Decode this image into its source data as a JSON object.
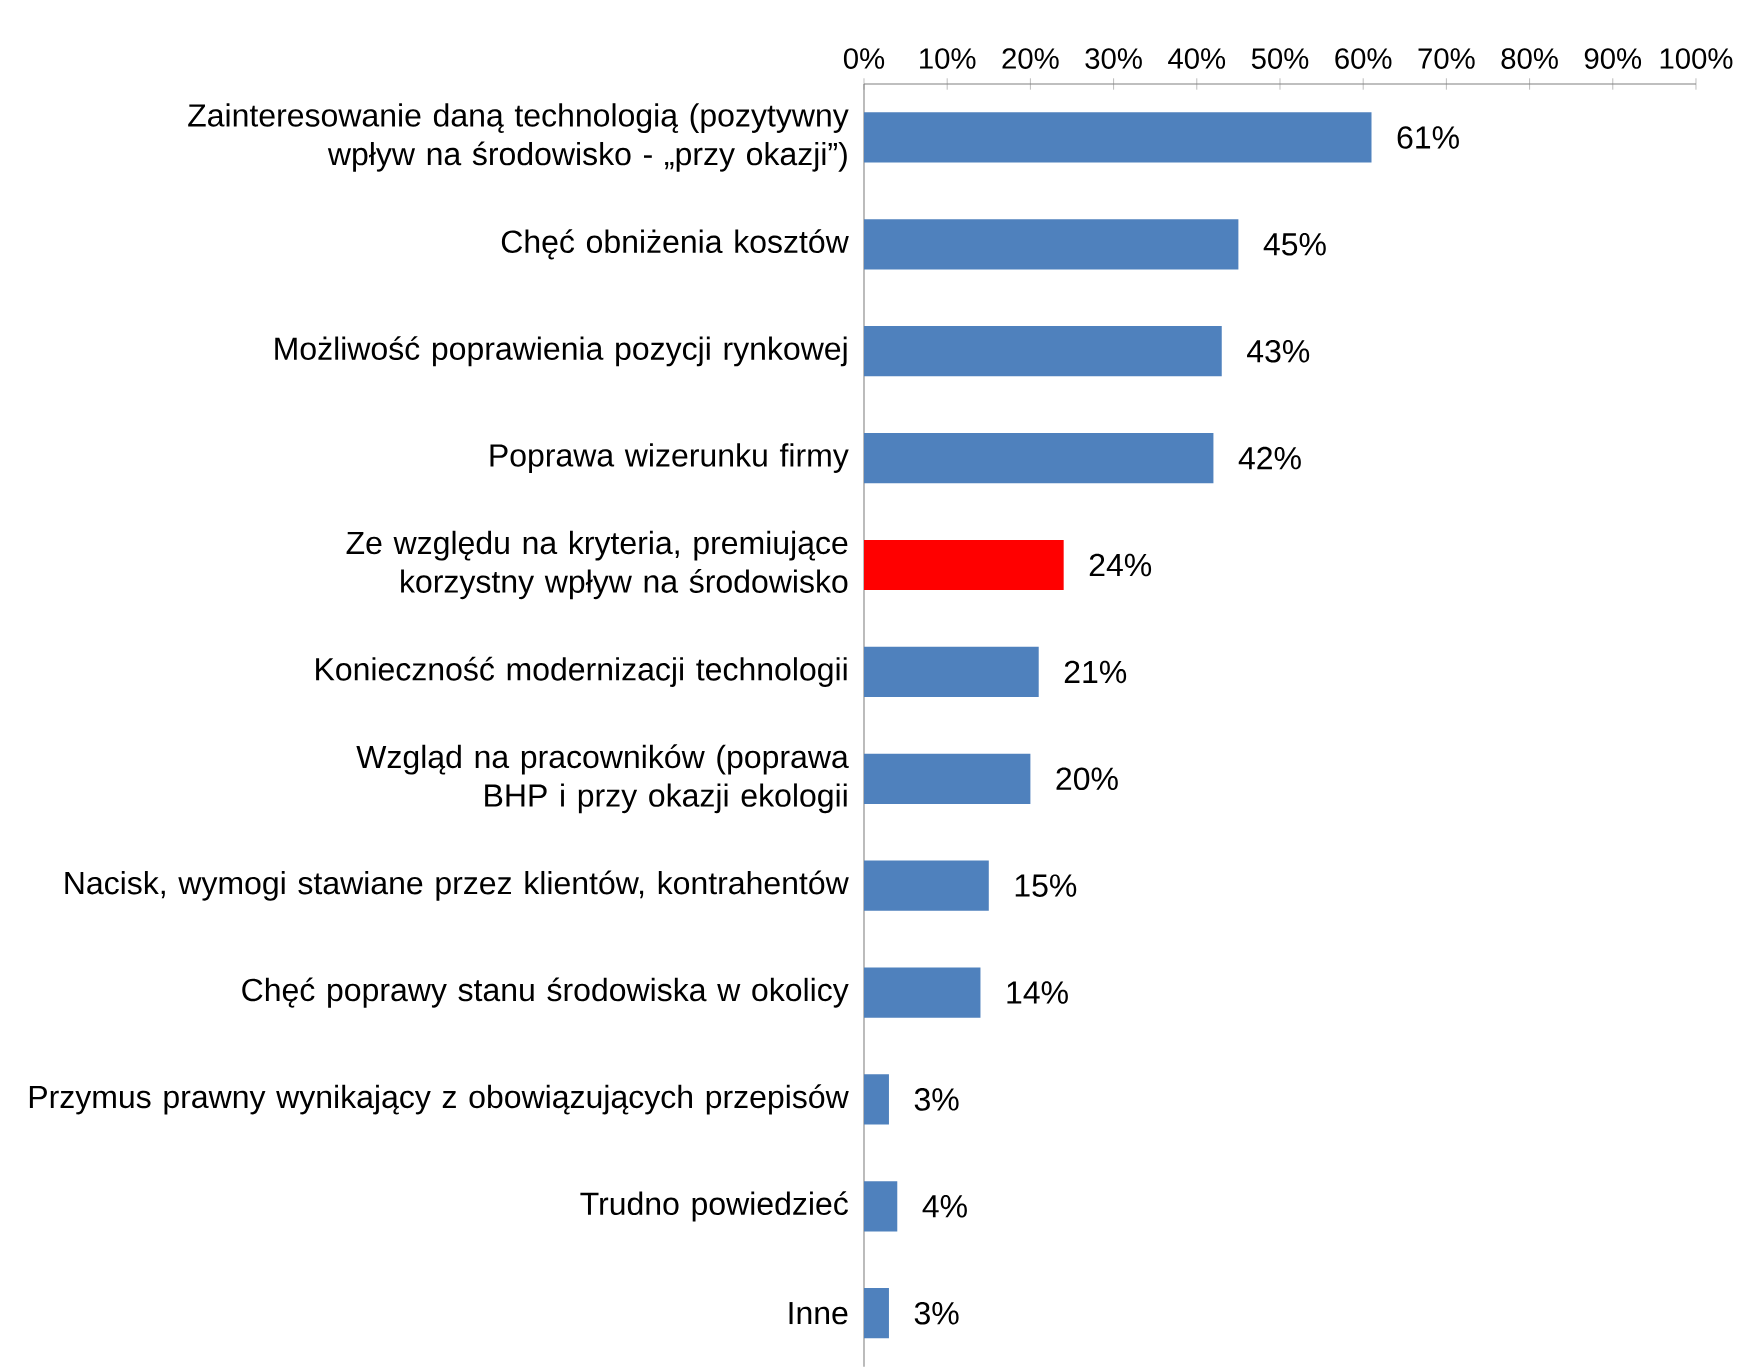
{
  "chart_data": {
    "type": "bar",
    "orientation": "horizontal",
    "categories": [
      "Zainteresowanie daną technologią (pozytywny wpływ na środowisko - „przy okazji”)",
      "Chęć obniżenia kosztów",
      "Możliwość poprawienia pozycji rynkowej",
      "Poprawa wizerunku firmy",
      "Ze względu na kryteria, premiujące korzystny wpływ na  środowisko",
      "Konieczność modernizacji technologii",
      "Wzgląd na pracowników (poprawa BHP i  przy okazji ekologii",
      "Nacisk, wymogi stawiane przez klientów, kontrahentów",
      "Chęć poprawy stanu środowiska w okolicy",
      "Przymus prawny wynikający z obowiązujących przepisów",
      "Trudno powiedzieć",
      "Inne"
    ],
    "values": [
      61,
      45,
      43,
      42,
      24,
      21,
      20,
      15,
      14,
      3,
      4,
      3
    ],
    "value_labels": [
      "61%",
      "45%",
      "43%",
      "42%",
      "24%",
      "21%",
      "20%",
      "15%",
      "14%",
      "3%",
      "4%",
      "3%"
    ],
    "colors": [
      "#4f81bd",
      "#4f81bd",
      "#4f81bd",
      "#4f81bd",
      "#ff0000",
      "#4f81bd",
      "#4f81bd",
      "#4f81bd",
      "#4f81bd",
      "#4f81bd",
      "#4f81bd",
      "#4f81bd"
    ],
    "xlim": [
      0,
      100
    ],
    "xticks": [
      {
        "value": 0,
        "label": "0%"
      },
      {
        "value": 10,
        "label": "10%"
      },
      {
        "value": 20,
        "label": "20%"
      },
      {
        "value": 30,
        "label": "30%"
      },
      {
        "value": 40,
        "label": "40%"
      },
      {
        "value": 50,
        "label": "50%"
      },
      {
        "value": 60,
        "label": "60%"
      },
      {
        "value": 70,
        "label": "70%"
      },
      {
        "value": 80,
        "label": "80%"
      },
      {
        "value": 90,
        "label": "90%"
      },
      {
        "value": 100,
        "label": "100%"
      }
    ]
  }
}
